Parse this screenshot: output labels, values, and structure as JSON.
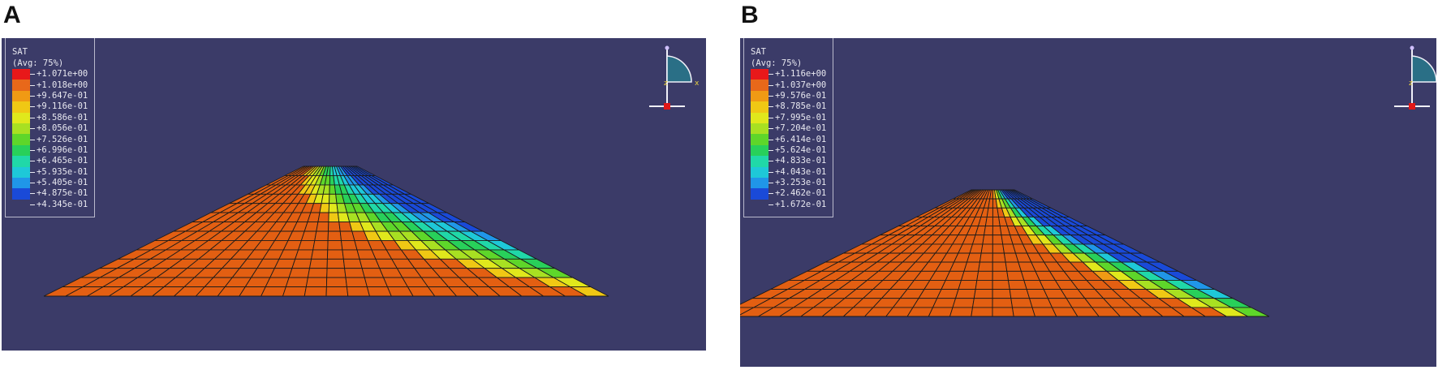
{
  "panels": [
    {
      "letter": "A",
      "legend": {
        "variable": "SAT",
        "avg": "(Avg: 75%)",
        "values": [
          "+1.071e+00",
          "+1.018e+00",
          "+9.647e-01",
          "+9.116e-01",
          "+8.586e-01",
          "+8.056e-01",
          "+7.526e-01",
          "+6.996e-01",
          "+6.465e-01",
          "+5.935e-01",
          "+5.405e-01",
          "+4.875e-01",
          "+4.345e-01"
        ]
      },
      "triad": {
        "y": "y",
        "x": "x",
        "z": "z"
      }
    },
    {
      "letter": "B",
      "legend": {
        "variable": "SAT",
        "avg": "(Avg: 75%)",
        "values": [
          "+1.116e+00",
          "+1.037e+00",
          "+9.576e-01",
          "+8.785e-01",
          "+7.995e-01",
          "+7.204e-01",
          "+6.414e-01",
          "+5.624e-01",
          "+4.833e-01",
          "+4.043e-01",
          "+3.253e-01",
          "+2.462e-01",
          "+1.672e-01"
        ]
      },
      "triad": {
        "y": "y",
        "x": "x",
        "z": "z"
      }
    }
  ],
  "colors": {
    "background": "#3b3b68",
    "contour_scale": [
      "#e8181a",
      "#e8681a",
      "#f09a14",
      "#f0c814",
      "#e0e81c",
      "#a8e022",
      "#5ed62a",
      "#28d05a",
      "#20d8a8",
      "#1ec8d8",
      "#2096e8",
      "#1a4ad8"
    ]
  }
}
